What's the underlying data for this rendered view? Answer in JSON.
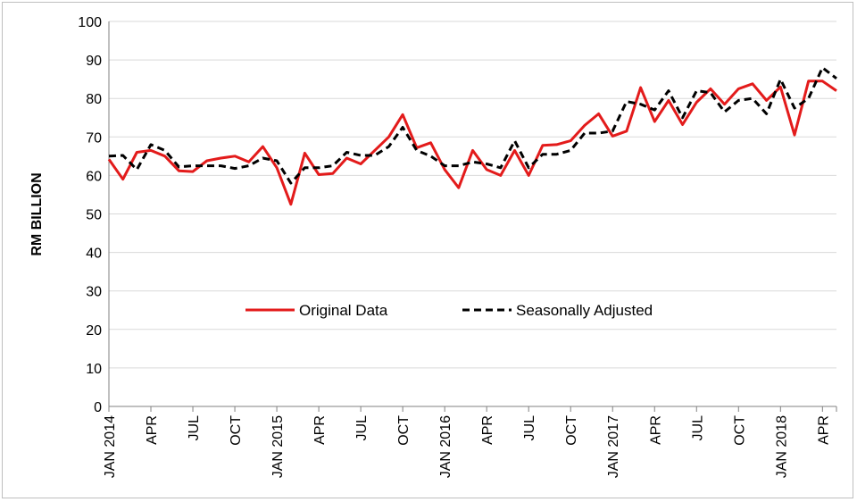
{
  "chart_data": {
    "type": "line",
    "title": "",
    "xlabel": "",
    "ylabel": "RM BILLION",
    "ylim": [
      0,
      100
    ],
    "yticks": [
      0,
      10,
      20,
      30,
      40,
      50,
      60,
      70,
      80,
      90,
      100
    ],
    "grid": true,
    "legend_position": "center",
    "x": [
      "2014-01",
      "2014-02",
      "2014-03",
      "2014-04",
      "2014-05",
      "2014-06",
      "2014-07",
      "2014-08",
      "2014-09",
      "2014-10",
      "2014-11",
      "2014-12",
      "2015-01",
      "2015-02",
      "2015-03",
      "2015-04",
      "2015-05",
      "2015-06",
      "2015-07",
      "2015-08",
      "2015-09",
      "2015-10",
      "2015-11",
      "2015-12",
      "2016-01",
      "2016-02",
      "2016-03",
      "2016-04",
      "2016-05",
      "2016-06",
      "2016-07",
      "2016-08",
      "2016-09",
      "2016-10",
      "2016-11",
      "2016-12",
      "2017-01",
      "2017-02",
      "2017-03",
      "2017-04",
      "2017-05",
      "2017-06",
      "2017-07",
      "2017-08",
      "2017-09",
      "2017-10",
      "2017-11",
      "2017-12",
      "2018-01",
      "2018-02",
      "2018-03",
      "2018-04",
      "2018-05"
    ],
    "x_tick_labels": [
      {
        "index": 0,
        "label": "JAN 2014"
      },
      {
        "index": 3,
        "label": "APR"
      },
      {
        "index": 6,
        "label": "JUL"
      },
      {
        "index": 9,
        "label": "OCT"
      },
      {
        "index": 12,
        "label": "JAN 2015"
      },
      {
        "index": 15,
        "label": "APR"
      },
      {
        "index": 18,
        "label": "JUL"
      },
      {
        "index": 21,
        "label": "OCT"
      },
      {
        "index": 24,
        "label": "JAN 2016"
      },
      {
        "index": 27,
        "label": "APR"
      },
      {
        "index": 30,
        "label": "JUL"
      },
      {
        "index": 33,
        "label": "OCT"
      },
      {
        "index": 36,
        "label": "JAN 2017"
      },
      {
        "index": 39,
        "label": "APR"
      },
      {
        "index": 42,
        "label": "JUL"
      },
      {
        "index": 45,
        "label": "OCT"
      },
      {
        "index": 48,
        "label": "JAN 2018"
      },
      {
        "index": 51,
        "label": "APR"
      }
    ],
    "series": [
      {
        "name": "Original Data",
        "color": "#e31b1b",
        "style": "solid",
        "values": [
          64.2,
          59.0,
          66.0,
          66.5,
          65.0,
          61.2,
          61.0,
          63.8,
          64.5,
          65.0,
          63.5,
          67.5,
          62.0,
          52.5,
          65.8,
          60.2,
          60.5,
          64.5,
          63.0,
          66.5,
          70.0,
          75.8,
          67.2,
          68.5,
          61.5,
          56.8,
          66.5,
          61.5,
          60.0,
          66.5,
          60.0,
          67.8,
          68.0,
          69.0,
          73.0,
          76.0,
          70.2,
          71.5,
          82.8,
          74.0,
          79.5,
          73.2,
          79.0,
          82.5,
          78.5,
          82.5,
          83.8,
          79.5,
          83.0,
          70.5,
          84.5,
          84.5,
          82.0
        ]
      },
      {
        "name": "Seasonally Adjusted",
        "color": "#000000",
        "style": "dashed",
        "values": [
          65.0,
          65.2,
          61.5,
          68.0,
          66.5,
          62.2,
          62.5,
          62.5,
          62.5,
          61.8,
          62.5,
          64.5,
          63.8,
          58.0,
          62.0,
          62.0,
          62.5,
          66.0,
          65.2,
          65.2,
          67.5,
          72.5,
          66.5,
          65.0,
          62.5,
          62.5,
          63.5,
          63.0,
          62.0,
          69.0,
          62.0,
          65.5,
          65.5,
          66.5,
          71.0,
          71.0,
          71.5,
          79.2,
          78.5,
          77.0,
          82.0,
          75.0,
          82.0,
          81.5,
          76.5,
          79.5,
          80.0,
          76.0,
          85.0,
          77.5,
          80.0,
          88.0,
          85.2
        ]
      }
    ]
  }
}
